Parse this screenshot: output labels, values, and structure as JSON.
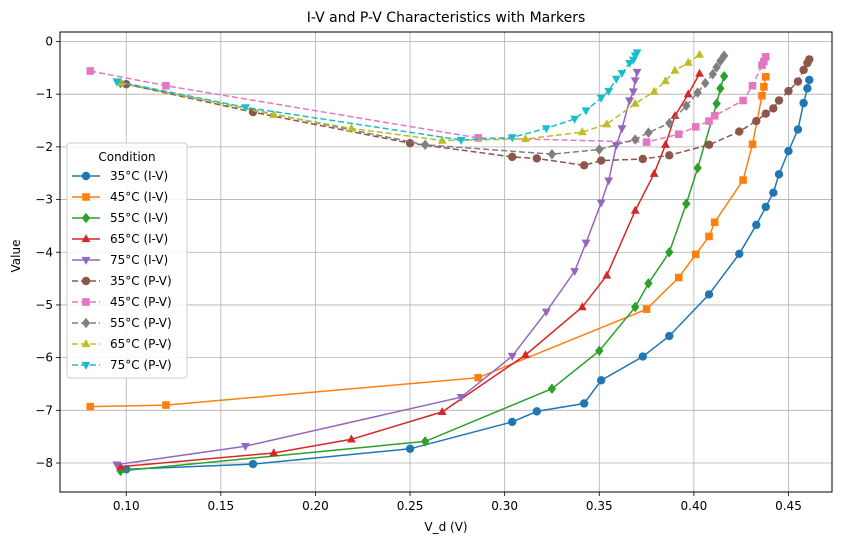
{
  "chart_data": {
    "type": "line",
    "title": "I-V and P-V Characteristics with Markers",
    "xlabel": "V_d (V)",
    "ylabel": "Value",
    "xlim": [
      0.065,
      0.473
    ],
    "ylim": [
      -8.55,
      0.18
    ],
    "xticks": [
      "0.10",
      "0.15",
      "0.20",
      "0.25",
      "0.30",
      "0.35",
      "0.40",
      "0.45"
    ],
    "xtick_values": [
      0.1,
      0.15,
      0.2,
      0.25,
      0.3,
      0.35,
      0.4,
      0.45
    ],
    "yticks": [
      "0",
      "−1",
      "−2",
      "−3",
      "−4",
      "−5",
      "−6",
      "−7",
      "−8"
    ],
    "ytick_values": [
      0,
      -1,
      -2,
      -3,
      -4,
      -5,
      -6,
      -7,
      -8
    ],
    "grid": true,
    "legend": {
      "title": "Condition",
      "placement": "center-left"
    },
    "series": [
      {
        "name": "35°C (I-V)",
        "color": "#1f77b4",
        "marker": "circle",
        "dash": "solid",
        "x": [
          0.1,
          0.167,
          0.25,
          0.304,
          0.317,
          0.342,
          0.351,
          0.373,
          0.387,
          0.408,
          0.424,
          0.433,
          0.438,
          0.442,
          0.445,
          0.45,
          0.455,
          0.458,
          0.46,
          0.461
        ],
        "y": [
          -8.12,
          -8.02,
          -7.73,
          -7.22,
          -7.02,
          -6.87,
          -6.43,
          -5.98,
          -5.59,
          -4.8,
          -4.03,
          -3.48,
          -3.14,
          -2.87,
          -2.52,
          -2.08,
          -1.67,
          -1.17,
          -0.89,
          -0.73
        ]
      },
      {
        "name": "45°C (I-V)",
        "color": "#ff7f0e",
        "marker": "square",
        "dash": "solid",
        "x": [
          0.081,
          0.121,
          0.286,
          0.375,
          0.392,
          0.401,
          0.408,
          0.411,
          0.426,
          0.431,
          0.436,
          0.437,
          0.438
        ],
        "y": [
          -6.93,
          -6.9,
          -6.38,
          -5.08,
          -4.48,
          -4.04,
          -3.7,
          -3.43,
          -2.63,
          -1.95,
          -1.03,
          -0.86,
          -0.67
        ]
      },
      {
        "name": "55°C (I-V)",
        "color": "#2ca02c",
        "marker": "diamond",
        "dash": "solid",
        "x": [
          0.097,
          0.258,
          0.325,
          0.35,
          0.369,
          0.376,
          0.387,
          0.396,
          0.402,
          0.412,
          0.414,
          0.416
        ],
        "y": [
          -8.15,
          -7.59,
          -6.59,
          -5.87,
          -5.04,
          -4.59,
          -4.0,
          -3.08,
          -2.4,
          -1.18,
          -0.89,
          -0.66
        ]
      },
      {
        "name": "65°C (I-V)",
        "color": "#d62728",
        "marker": "triangle-up",
        "dash": "solid",
        "x": [
          0.097,
          0.178,
          0.219,
          0.267,
          0.311,
          0.341,
          0.354,
          0.369,
          0.379,
          0.385,
          0.39,
          0.397,
          0.403
        ],
        "y": [
          -8.07,
          -7.81,
          -7.55,
          -7.03,
          -5.95,
          -5.04,
          -4.44,
          -3.21,
          -2.51,
          -1.96,
          -1.41,
          -1.0,
          -0.61
        ]
      },
      {
        "name": "75°C (I-V)",
        "color": "#9467bd",
        "marker": "triangle-down",
        "dash": "solid",
        "x": [
          0.095,
          0.163,
          0.277,
          0.304,
          0.322,
          0.337,
          0.343,
          0.351,
          0.355,
          0.359,
          0.362,
          0.366,
          0.368,
          0.369,
          0.37
        ],
        "y": [
          -8.03,
          -7.68,
          -6.75,
          -5.97,
          -5.13,
          -4.36,
          -3.82,
          -3.06,
          -2.64,
          -1.97,
          -1.65,
          -1.12,
          -0.95,
          -0.74,
          -0.58
        ]
      },
      {
        "name": "35°C (P-V)",
        "color": "#8c564b",
        "marker": "circle",
        "dash": "dashed",
        "x": [
          0.1,
          0.167,
          0.25,
          0.304,
          0.317,
          0.342,
          0.351,
          0.373,
          0.387,
          0.408,
          0.424,
          0.433,
          0.438,
          0.442,
          0.445,
          0.45,
          0.455,
          0.458,
          0.46,
          0.461
        ],
        "y": [
          -0.81,
          -1.34,
          -1.93,
          -2.19,
          -2.22,
          -2.35,
          -2.26,
          -2.23,
          -2.16,
          -1.96,
          -1.71,
          -1.51,
          -1.37,
          -1.27,
          -1.12,
          -0.94,
          -0.76,
          -0.54,
          -0.41,
          -0.34
        ]
      },
      {
        "name": "45°C (P-V)",
        "color": "#e377c2",
        "marker": "square",
        "dash": "dashed",
        "x": [
          0.081,
          0.121,
          0.286,
          0.375,
          0.392,
          0.401,
          0.408,
          0.411,
          0.426,
          0.431,
          0.436,
          0.437,
          0.438
        ],
        "y": [
          -0.56,
          -0.84,
          -1.83,
          -1.91,
          -1.76,
          -1.62,
          -1.51,
          -1.41,
          -1.12,
          -0.84,
          -0.45,
          -0.38,
          -0.29
        ]
      },
      {
        "name": "55°C (P-V)",
        "color": "#7f7f7f",
        "marker": "diamond",
        "dash": "dashed",
        "x": [
          0.097,
          0.258,
          0.325,
          0.35,
          0.369,
          0.376,
          0.387,
          0.396,
          0.402,
          0.406,
          0.41,
          0.412,
          0.414,
          0.416
        ],
        "y": [
          -0.79,
          -1.96,
          -2.14,
          -2.05,
          -1.86,
          -1.73,
          -1.55,
          -1.22,
          -0.97,
          -0.79,
          -0.62,
          -0.49,
          -0.37,
          -0.27
        ]
      },
      {
        "name": "65°C (P-V)",
        "color": "#bcbd22",
        "marker": "triangle-up",
        "dash": "dashed",
        "x": [
          0.097,
          0.178,
          0.219,
          0.267,
          0.311,
          0.341,
          0.354,
          0.369,
          0.379,
          0.385,
          0.39,
          0.397,
          0.403
        ],
        "y": [
          -0.78,
          -1.39,
          -1.65,
          -1.88,
          -1.85,
          -1.72,
          -1.57,
          -1.18,
          -0.95,
          -0.75,
          -0.55,
          -0.4,
          -0.25
        ]
      },
      {
        "name": "75°C (P-V)",
        "color": "#17becf",
        "marker": "triangle-down",
        "dash": "dashed",
        "x": [
          0.095,
          0.163,
          0.277,
          0.304,
          0.322,
          0.337,
          0.343,
          0.351,
          0.355,
          0.359,
          0.362,
          0.366,
          0.368,
          0.369,
          0.37
        ],
        "y": [
          -0.76,
          -1.25,
          -1.87,
          -1.82,
          -1.65,
          -1.47,
          -1.31,
          -1.07,
          -0.94,
          -0.71,
          -0.6,
          -0.41,
          -0.35,
          -0.27,
          -0.21
        ]
      }
    ]
  }
}
